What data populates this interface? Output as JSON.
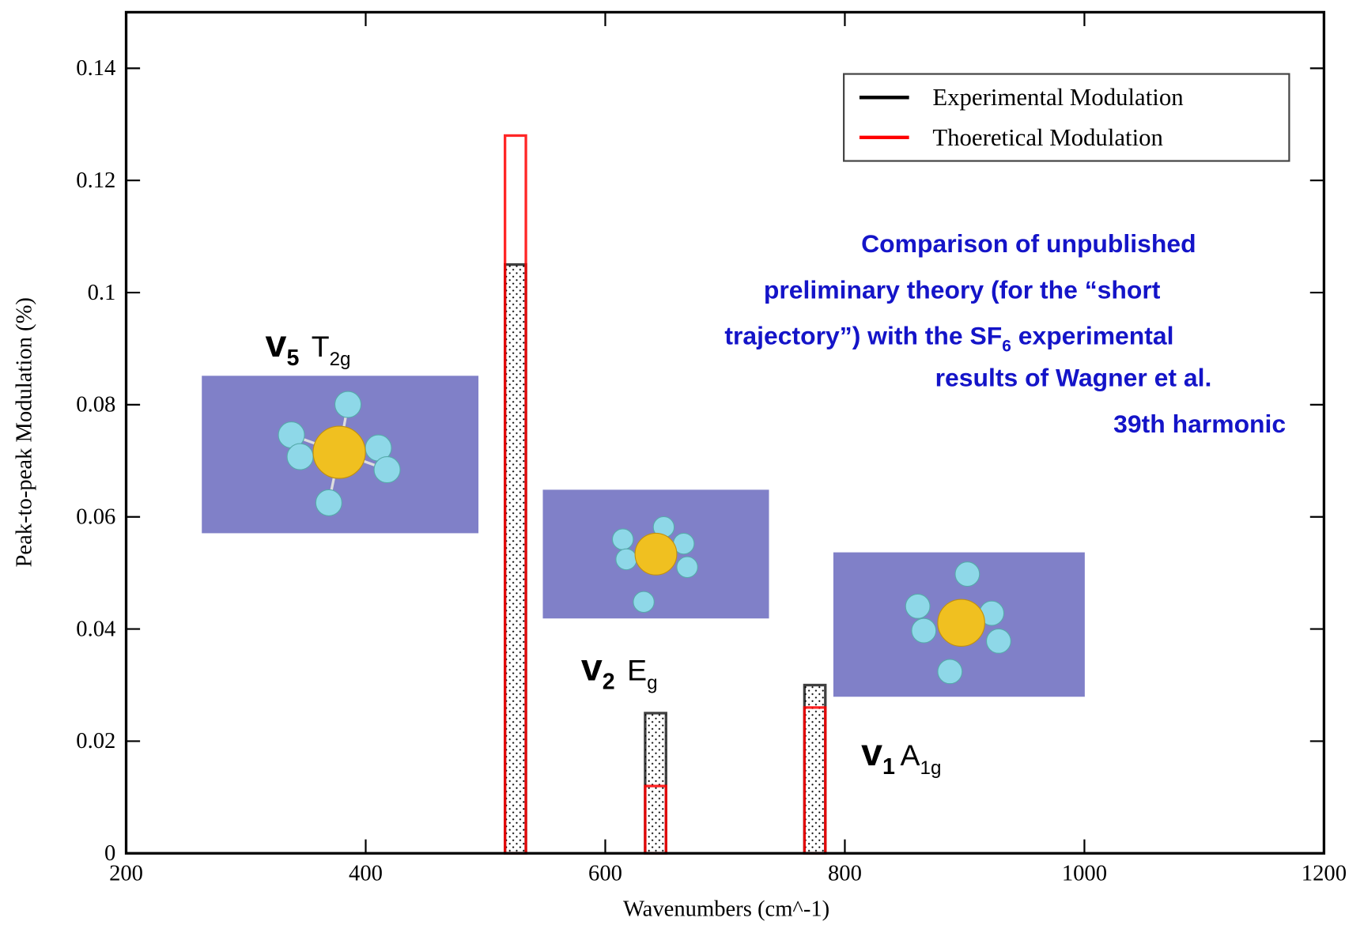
{
  "chart_data": {
    "type": "bar",
    "x_label": "Wavenumbers (cm^-1)",
    "y_label": "Peak-to-peak Modulation (%)",
    "x": [
      525,
      642,
      775
    ],
    "series": [
      {
        "name": "Experimental Modulation",
        "color": "#000000",
        "values": [
          0.105,
          0.025,
          0.03
        ]
      },
      {
        "name": "Thoeretical Modulation",
        "color": "#ff0000",
        "values": [
          0.128,
          0.012,
          0.026
        ]
      }
    ],
    "xlim": [
      200,
      1200
    ],
    "xticks": [
      200,
      400,
      600,
      800,
      1000,
      1200
    ],
    "ylim": [
      0,
      0.15
    ],
    "yticks": [
      0,
      0.02,
      0.04,
      0.06,
      0.08,
      0.1,
      0.12,
      0.14
    ],
    "legend": "upper right",
    "modes": [
      {
        "symbol": "v",
        "index": "5",
        "symmetry": "T",
        "symmetry_index": "2g"
      },
      {
        "symbol": "v",
        "index": "2",
        "symmetry": "E",
        "symmetry_index": "g"
      },
      {
        "symbol": "v",
        "index": "1",
        "symmetry": "A",
        "symmetry_index": "1g"
      }
    ],
    "annotation": {
      "lines": [
        "Comparison of unpublished",
        "preliminary theory (for the “short",
        "trajectory”) with the SF",
        "6",
        " experimental",
        "results of Wagner et al.",
        "39th harmonic"
      ]
    }
  }
}
